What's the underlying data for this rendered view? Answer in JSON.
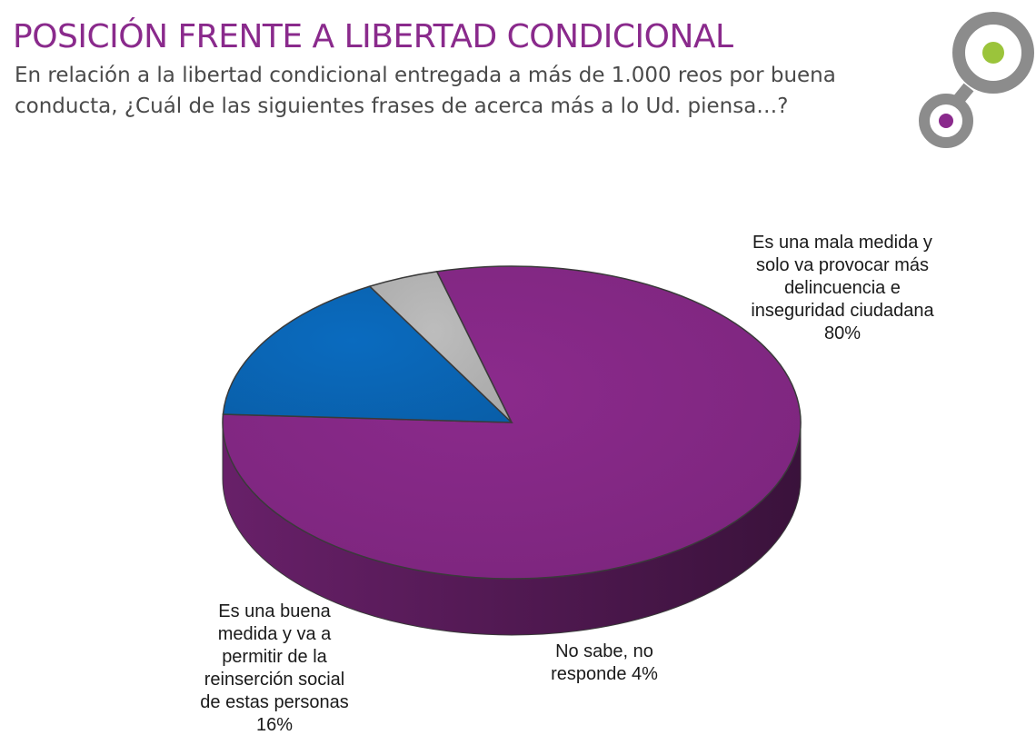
{
  "header": {
    "title": "POSICIÓN FRENTE A LIBERTAD CONDICIONAL",
    "subtitle": "En relación a la libertad condicional entregada a más de 1.000 reos por buena conducta, ¿Cuál de las siguientes frases de acerca más a lo Ud. piensa…?"
  },
  "logo": {
    "icon": "circles-logo",
    "colors": {
      "ring": "#8c8c8c",
      "dot_top": "#9bc43b",
      "dot_bottom": "#8a2a8c"
    }
  },
  "chart_data": {
    "type": "pie",
    "style": "3d",
    "title": "",
    "slices": [
      {
        "label": "Es una mala medida y solo va provocar más delincuencia e inseguridad ciudadana",
        "value": 80,
        "value_label": "80%",
        "color": "#8b2a8c"
      },
      {
        "label": "Es una buena medida y va a permitir de la reinserción social de estas personas",
        "value": 16,
        "value_label": "16%",
        "color": "#0a6bbf"
      },
      {
        "label": "No sabe, no responde",
        "value": 4,
        "value_label": "4%",
        "color": "#bdbdbd"
      }
    ],
    "labels": {
      "mala": "Es una mala medida y\nsolo va provocar más\ndelincuencia e\ninseguridad ciudadana\n80%",
      "buena": "Es una buena\nmedida y va a\npermitir de la\nreinserción social\nde estas personas\n16%",
      "nosabe": "No sabe, no\nresponde 4%"
    },
    "legend": "none"
  }
}
